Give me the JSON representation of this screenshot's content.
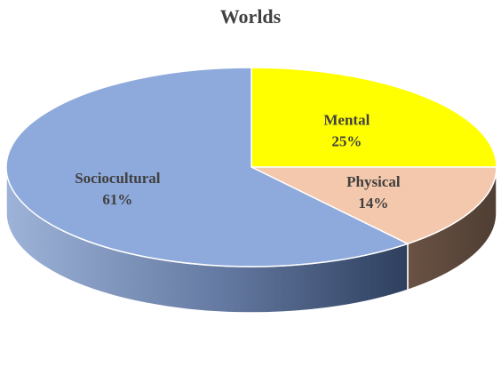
{
  "chart_data": {
    "type": "pie",
    "title": "Worlds",
    "slices": [
      {
        "label": "Mental",
        "value": 25,
        "value_label": "25%",
        "color": "#ffff00",
        "side_color": "#b3b300"
      },
      {
        "label": "Physical",
        "value": 14,
        "value_label": "14%",
        "color": "#f4c8ac",
        "side_color": "#5e4a3e"
      },
      {
        "label": "Sociocultural",
        "value": 61,
        "value_label": "61%",
        "color": "#8ea9db",
        "side_color": "#4a6188"
      }
    ],
    "legend": "none",
    "style": "3d"
  }
}
